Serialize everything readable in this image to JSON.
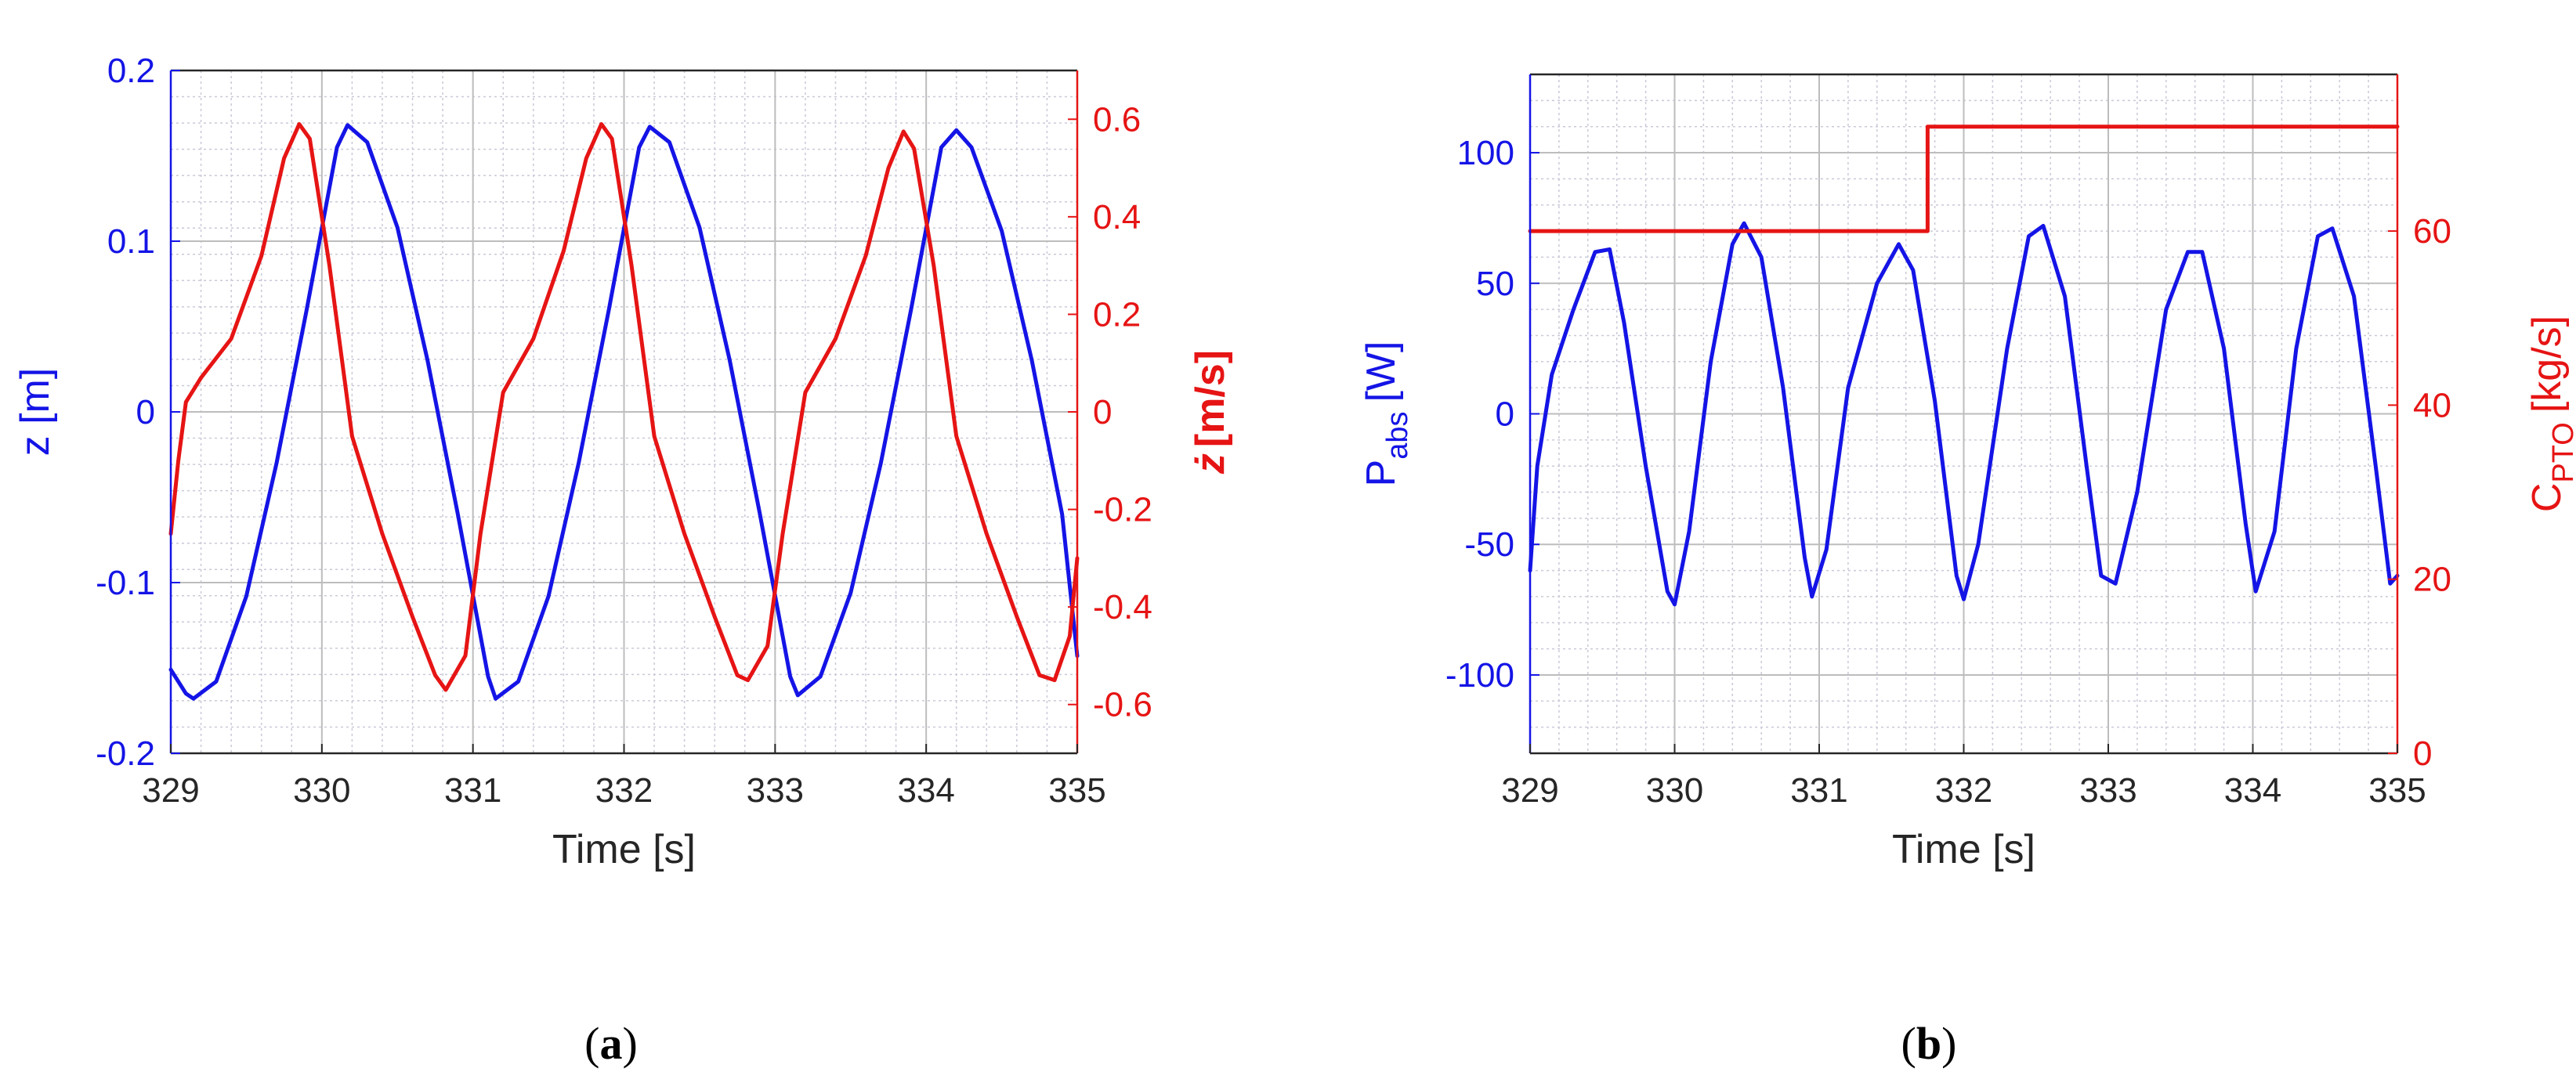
{
  "figure": {
    "panel_tags": [
      {
        "open": "(",
        "letter": "a",
        "close": ")"
      },
      {
        "open": "(",
        "letter": "b",
        "close": ")"
      }
    ]
  },
  "colors": {
    "blue": "#1414e6",
    "red": "#e61414",
    "axis": "#262626",
    "grid_minor": "#c9c9d8",
    "grid_major": "#bdbdbd"
  },
  "chart_data": [
    {
      "type": "line",
      "xlabel": "Time [s]",
      "ylabel_left": "z [m]",
      "ylabel_right": {
        "dot_symbol": "ż",
        "rest": "[m/s]"
      },
      "xlim": [
        329,
        335
      ],
      "ylim_left": [
        -0.2,
        0.2
      ],
      "ylim_right": [
        -0.7,
        0.7
      ],
      "xticks": [
        329,
        330,
        331,
        332,
        333,
        334,
        335
      ],
      "xtick_labels": [
        "329",
        "330",
        "331",
        "332",
        "333",
        "334",
        "335"
      ],
      "yticks_left": [
        -0.2,
        -0.1,
        0,
        0.1,
        0.2
      ],
      "ytick_labels_left": [
        "-0.2",
        "-0.1",
        "0",
        "0.1",
        "0.2"
      ],
      "yticks_right": [
        -0.6,
        -0.4,
        -0.2,
        0,
        0.2,
        0.4,
        0.6
      ],
      "ytick_labels_right": [
        "-0.6",
        "-0.4",
        "-0.2",
        "0",
        "0.2",
        "0.4",
        "0.6"
      ],
      "grid": "on (major + minor)",
      "series": [
        {
          "axis": "left",
          "color": "blue",
          "x": [
            329,
            329.1,
            329.15,
            329.3,
            329.5,
            329.7,
            329.9,
            330.1,
            330.17,
            330.3,
            330.5,
            330.7,
            330.9,
            331.1,
            331.15,
            331.3,
            331.5,
            331.7,
            331.9,
            332.1,
            332.17,
            332.3,
            332.5,
            332.7,
            332.9,
            333.1,
            333.15,
            333.3,
            333.5,
            333.7,
            333.9,
            334.1,
            334.2,
            334.3,
            334.5,
            334.7,
            334.9,
            335
          ],
          "y": [
            -0.151,
            -0.165,
            -0.168,
            -0.158,
            -0.108,
            -0.03,
            0.06,
            0.155,
            0.168,
            0.158,
            0.108,
            0.03,
            -0.06,
            -0.155,
            -0.168,
            -0.158,
            -0.108,
            -0.03,
            0.06,
            0.155,
            0.167,
            0.158,
            0.108,
            0.03,
            -0.06,
            -0.155,
            -0.166,
            -0.155,
            -0.106,
            -0.03,
            0.06,
            0.155,
            0.165,
            0.155,
            0.106,
            0.03,
            -0.06,
            -0.143
          ]
        },
        {
          "axis": "right",
          "color": "red",
          "x": [
            329,
            329.05,
            329.1,
            329.2,
            329.4,
            329.6,
            329.75,
            329.85,
            329.92,
            330.05,
            330.2,
            330.4,
            330.6,
            330.75,
            330.82,
            330.95,
            331.05,
            331.2,
            331.4,
            331.6,
            331.75,
            331.85,
            331.92,
            332.05,
            332.2,
            332.4,
            332.6,
            332.75,
            332.82,
            332.95,
            333.05,
            333.2,
            333.4,
            333.6,
            333.75,
            333.85,
            333.92,
            334.05,
            334.2,
            334.4,
            334.6,
            334.75,
            334.85,
            334.95,
            335
          ],
          "y": [
            -0.25,
            -0.1,
            0.02,
            0.07,
            0.15,
            0.32,
            0.52,
            0.59,
            0.56,
            0.3,
            -0.05,
            -0.25,
            -0.42,
            -0.54,
            -0.57,
            -0.5,
            -0.25,
            0.04,
            0.15,
            0.33,
            0.52,
            0.59,
            0.56,
            0.3,
            -0.05,
            -0.25,
            -0.42,
            -0.54,
            -0.55,
            -0.48,
            -0.25,
            0.04,
            0.15,
            0.32,
            0.5,
            0.575,
            0.54,
            0.3,
            -0.05,
            -0.25,
            -0.42,
            -0.54,
            -0.55,
            -0.46,
            -0.3
          ]
        }
      ]
    },
    {
      "type": "line",
      "xlabel": "Time [s]",
      "ylabel_left": {
        "main": "P",
        "sub": "abs",
        "rest": "[W]"
      },
      "ylabel_right": {
        "main": "C",
        "sub": "PTO",
        "rest": "[kg/s]"
      },
      "xlim": [
        329,
        335
      ],
      "ylim_left": [
        -130,
        130
      ],
      "ylim_right": [
        0,
        78
      ],
      "xticks": [
        329,
        330,
        331,
        332,
        333,
        334,
        335
      ],
      "xtick_labels": [
        "329",
        "330",
        "331",
        "332",
        "333",
        "334",
        "335"
      ],
      "yticks_left": [
        -100,
        -50,
        0,
        50,
        100
      ],
      "ytick_labels_left": [
        "-100",
        "-50",
        "0",
        "50",
        "100"
      ],
      "yticks_right": [
        0,
        20,
        40,
        60
      ],
      "ytick_labels_right": [
        "0",
        "20",
        "40",
        "60"
      ],
      "grid": "on (major + minor)",
      "series": [
        {
          "axis": "left",
          "color": "blue",
          "x": [
            329,
            329.05,
            329.15,
            329.3,
            329.45,
            329.55,
            329.65,
            329.8,
            329.95,
            330.0,
            330.1,
            330.25,
            330.4,
            330.48,
            330.6,
            330.75,
            330.9,
            330.95,
            331.05,
            331.2,
            331.4,
            331.55,
            331.65,
            331.8,
            331.95,
            332.0,
            332.1,
            332.3,
            332.45,
            332.55,
            332.7,
            332.85,
            332.95,
            333.05,
            333.2,
            333.4,
            333.55,
            333.65,
            333.8,
            333.95,
            334.02,
            334.15,
            334.3,
            334.45,
            334.55,
            334.7,
            334.85,
            334.95,
            335
          ],
          "y": [
            -60,
            -20,
            15,
            40,
            62,
            63,
            35,
            -20,
            -68,
            -73,
            -45,
            20,
            65,
            73,
            60,
            10,
            -55,
            -70,
            -52,
            10,
            50,
            65,
            55,
            5,
            -62,
            -71,
            -50,
            25,
            68,
            72,
            45,
            -20,
            -62,
            -65,
            -30,
            40,
            62,
            62,
            25,
            -42,
            -68,
            -45,
            25,
            68,
            71,
            45,
            -20,
            -65,
            -62
          ]
        },
        {
          "axis": "right",
          "color": "red",
          "x": [
            329,
            331.75,
            331.75,
            335
          ],
          "y": [
            60,
            60,
            72,
            72
          ]
        }
      ]
    }
  ]
}
